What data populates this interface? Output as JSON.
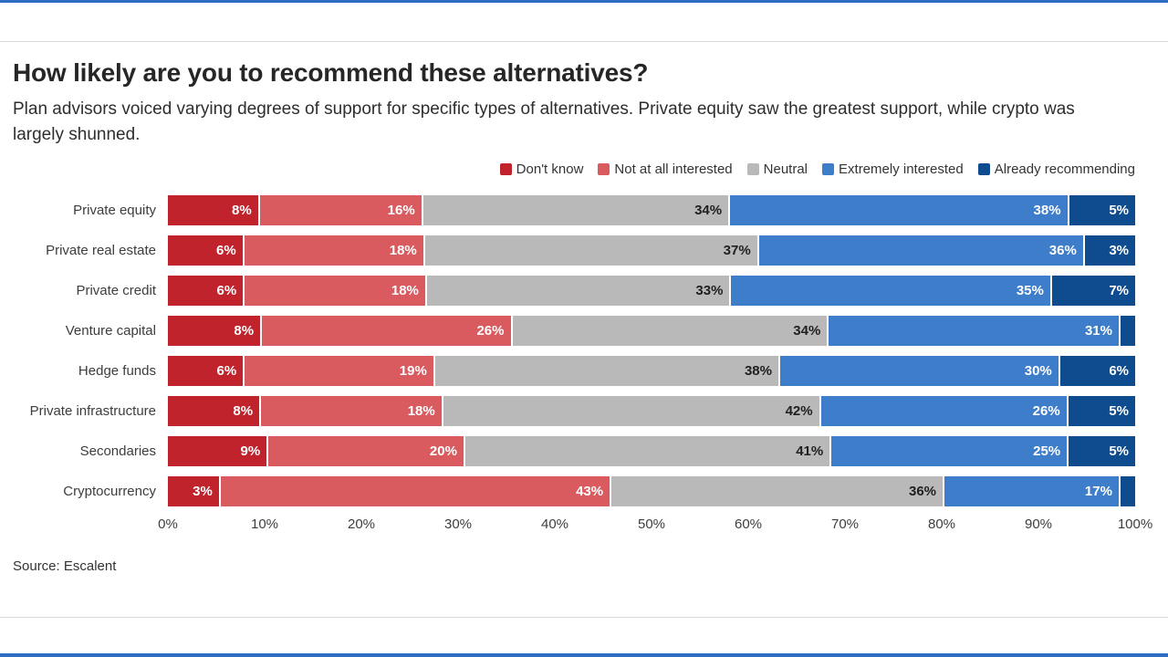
{
  "theme": {
    "accent_color": "#2d6cc1",
    "divider_color": "#d8d8d8"
  },
  "page": {
    "title": "How likely are you to recommend these alternatives?",
    "subtitle": "Plan advisors voiced varying degrees of support for specific types of alternatives. Private equity saw the greatest support, while crypto was largely shunned.",
    "source": "Source: Escalent"
  },
  "chart_data": {
    "type": "bar",
    "orientation": "horizontal",
    "stacked": true,
    "title": "How likely are you to recommend these alternatives?",
    "categories": [
      "Private equity",
      "Private real estate",
      "Private credit",
      "Venture capital",
      "Hedge funds",
      "Private infrastructure",
      "Secondaries",
      "Cryptocurrency"
    ],
    "series": [
      {
        "name": "Don't know",
        "color": "#c0232c",
        "label_color": "#ffffff",
        "values": [
          8,
          6,
          6,
          8,
          6,
          8,
          9,
          3
        ]
      },
      {
        "name": "Not at all interested",
        "color": "#d95b60",
        "label_color": "#ffffff",
        "values": [
          16,
          18,
          18,
          26,
          19,
          18,
          20,
          43
        ]
      },
      {
        "name": "Neutral",
        "color": "#b9b9b9",
        "label_color": "#1f1f1f",
        "values": [
          34,
          37,
          33,
          34,
          38,
          42,
          41,
          36
        ]
      },
      {
        "name": "Extremely interested",
        "color": "#3d7dca",
        "label_color": "#ffffff",
        "values": [
          38,
          36,
          35,
          31,
          30,
          26,
          25,
          17
        ]
      },
      {
        "name": "Already recommending",
        "color": "#0e4c8f",
        "label_color": "#ffffff",
        "values": [
          5,
          3,
          7,
          1,
          6,
          5,
          5,
          1
        ]
      }
    ],
    "x_ticks": [
      "0%",
      "10%",
      "20%",
      "30%",
      "40%",
      "50%",
      "60%",
      "70%",
      "80%",
      "90%",
      "100%"
    ],
    "xlim": [
      0,
      100
    ],
    "grid": false,
    "legend_position": "top-right",
    "value_suffix": "%",
    "label_min_value": 3
  }
}
